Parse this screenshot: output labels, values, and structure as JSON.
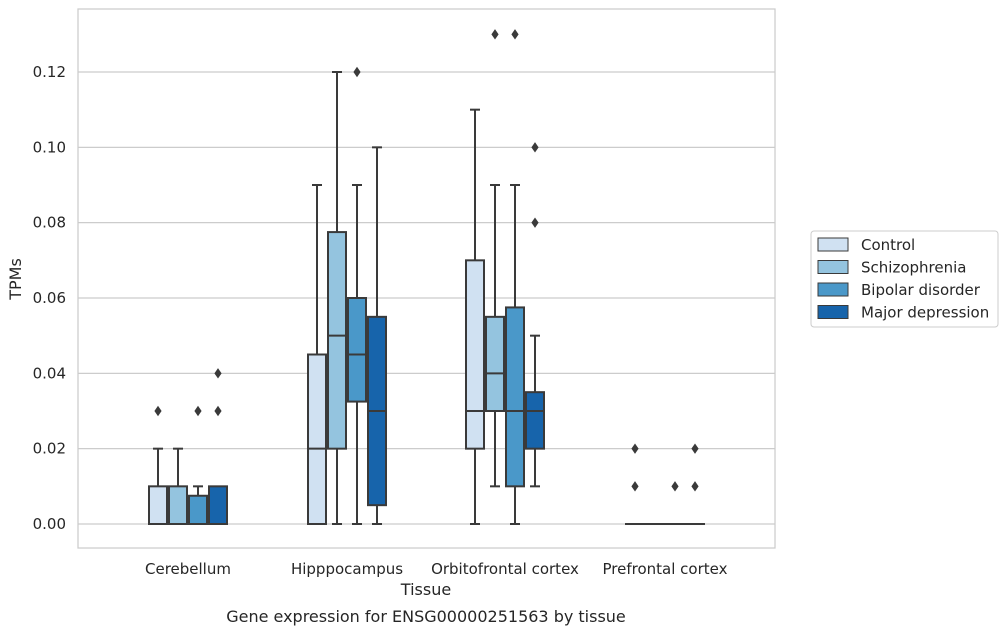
{
  "chart_data": {
    "type": "box",
    "title": "",
    "caption": "Gene expression for ENSG00000251563 by tissue",
    "xlabel": "Tissue",
    "ylabel": "TPMs",
    "ylim": [
      -0.0065,
      0.137
    ],
    "yticks": [
      0.0,
      0.02,
      0.04,
      0.06,
      0.08,
      0.1,
      0.12
    ],
    "ytick_labels": [
      "0.00",
      "0.02",
      "0.04",
      "0.06",
      "0.08",
      "0.10",
      "0.12"
    ],
    "categories": [
      "Cerebellum",
      "Hipppocampus",
      "Orbitofrontal cortex",
      "Prefrontal cortex"
    ],
    "grid": "horizontal",
    "legend_position": "right",
    "series": [
      {
        "name": "Control",
        "color": "#d0e1f2",
        "boxes": [
          {
            "whislo": 0.0,
            "q1": 0.0,
            "med": 0.0,
            "q3": 0.01,
            "whishi": 0.02,
            "fliers": [
              0.03
            ]
          },
          {
            "whislo": 0.0,
            "q1": 0.0,
            "med": 0.02,
            "q3": 0.045,
            "whishi": 0.09,
            "fliers": []
          },
          {
            "whislo": 0.0,
            "q1": 0.02,
            "med": 0.03,
            "q3": 0.07,
            "whishi": 0.11,
            "fliers": []
          },
          {
            "whislo": 0.0,
            "q1": 0.0,
            "med": 0.0,
            "q3": 0.0,
            "whishi": 0.0,
            "fliers": [
              0.01,
              0.02
            ]
          }
        ]
      },
      {
        "name": "Schizophrenia",
        "color": "#94c4df",
        "boxes": [
          {
            "whislo": 0.0,
            "q1": 0.0,
            "med": 0.0,
            "q3": 0.01,
            "whishi": 0.02,
            "fliers": []
          },
          {
            "whislo": 0.0,
            "q1": 0.02,
            "med": 0.05,
            "q3": 0.0775,
            "whishi": 0.12,
            "fliers": []
          },
          {
            "whislo": 0.01,
            "q1": 0.03,
            "med": 0.04,
            "q3": 0.055,
            "whishi": 0.09,
            "fliers": [
              0.13
            ]
          },
          {
            "whislo": 0.0,
            "q1": 0.0,
            "med": 0.0,
            "q3": 0.0,
            "whishi": 0.0,
            "fliers": []
          }
        ]
      },
      {
        "name": "Bipolar disorder",
        "color": "#4a98c9",
        "boxes": [
          {
            "whislo": 0.0,
            "q1": 0.0,
            "med": 0.0,
            "q3": 0.0075,
            "whishi": 0.01,
            "fliers": [
              0.03
            ]
          },
          {
            "whislo": 0.0,
            "q1": 0.0325,
            "med": 0.045,
            "q3": 0.06,
            "whishi": 0.09,
            "fliers": [
              0.12
            ]
          },
          {
            "whislo": 0.0,
            "q1": 0.01,
            "med": 0.03,
            "q3": 0.0575,
            "whishi": 0.09,
            "fliers": [
              0.13
            ]
          },
          {
            "whislo": 0.0,
            "q1": 0.0,
            "med": 0.0,
            "q3": 0.0,
            "whishi": 0.0,
            "fliers": [
              0.01
            ]
          }
        ]
      },
      {
        "name": "Major depression",
        "color": "#1764ab",
        "boxes": [
          {
            "whislo": 0.0,
            "q1": 0.0,
            "med": 0.0,
            "q3": 0.01,
            "whishi": 0.01,
            "fliers": [
              0.03,
              0.04
            ]
          },
          {
            "whislo": 0.0,
            "q1": 0.005,
            "med": 0.03,
            "q3": 0.055,
            "whishi": 0.1,
            "fliers": []
          },
          {
            "whislo": 0.01,
            "q1": 0.02,
            "med": 0.03,
            "q3": 0.035,
            "whishi": 0.05,
            "fliers": [
              0.08,
              0.1
            ]
          },
          {
            "whislo": 0.0,
            "q1": 0.0,
            "med": 0.0,
            "q3": 0.0,
            "whishi": 0.0,
            "fliers": [
              0.01,
              0.02
            ]
          }
        ]
      }
    ]
  }
}
